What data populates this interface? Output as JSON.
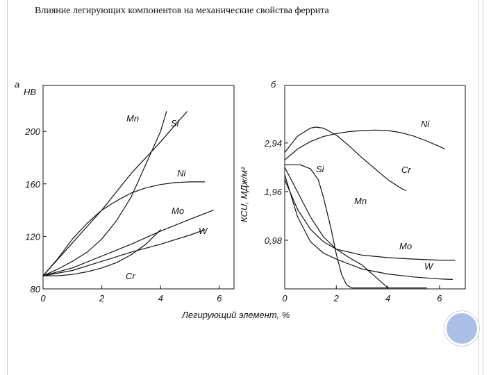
{
  "title": "Влияние легирующих компонентов на механические свойства феррита",
  "colors": {
    "line": "#111111",
    "border": "#c9cdd4",
    "decor": "#a9bfe6"
  },
  "shared_xlabel": "Легирующий элемент, %",
  "chart_data": [
    {
      "type": "line",
      "panel_label": "а",
      "ylabel": "НВ",
      "xlabel": "",
      "xlim": [
        0,
        6.5
      ],
      "ylim": [
        80,
        235
      ],
      "xticks": [
        0,
        2,
        4,
        6
      ],
      "xtick_labels": [
        "0",
        "2",
        "4",
        "6"
      ],
      "yticks": [
        80,
        120,
        160,
        200
      ],
      "ytick_labels": [
        "80",
        "120",
        "160",
        "200"
      ],
      "grid": false,
      "series": [
        {
          "name": "Mn",
          "x": [
            0,
            0.5,
            1,
            1.5,
            2,
            2.5,
            3,
            3.3,
            3.6,
            4,
            4.2
          ],
          "y": [
            90,
            95,
            101,
            108,
            118,
            132,
            150,
            165,
            180,
            200,
            215
          ]
        },
        {
          "name": "Si",
          "x": [
            0,
            1,
            2,
            3,
            4,
            4.5,
            4.9
          ],
          "y": [
            90,
            115,
            140,
            168,
            192,
            205,
            215
          ]
        },
        {
          "name": "Ni",
          "x": [
            0,
            0.5,
            1,
            1.5,
            2,
            2.5,
            3,
            3.5,
            4,
            4.5,
            5,
            5.5
          ],
          "y": [
            90,
            103,
            118,
            130,
            140,
            147,
            153,
            157,
            159.5,
            161,
            161.5,
            161.5
          ]
        },
        {
          "name": "Mo",
          "x": [
            0,
            1,
            2,
            3,
            4,
            5,
            5.8
          ],
          "y": [
            90,
            96,
            105,
            114,
            124,
            133,
            140
          ]
        },
        {
          "name": "W",
          "x": [
            0,
            1,
            2,
            3,
            4,
            5,
            5.5
          ],
          "y": [
            90,
            94,
            101,
            108,
            114,
            121,
            125
          ]
        },
        {
          "name": "Cr",
          "x": [
            0,
            0.5,
            1,
            1.5,
            2,
            2.5,
            3,
            3.5,
            4
          ],
          "y": [
            90,
            90,
            91,
            93,
            96,
            100,
            106,
            114,
            125
          ]
        }
      ]
    },
    {
      "type": "line",
      "panel_label": "б",
      "ylabel": "КСU, МДж/м²",
      "xlabel": "",
      "xlim": [
        0,
        7
      ],
      "ylim": [
        0,
        4.1
      ],
      "xticks": [
        0,
        2,
        4,
        6
      ],
      "xtick_labels": [
        "0",
        "2",
        "4",
        "6"
      ],
      "yticks": [
        0.98,
        1.96,
        2.94
      ],
      "ytick_labels": [
        "0,98",
        "1,96",
        "2,94"
      ],
      "grid": false,
      "series": [
        {
          "name": "Ni",
          "x": [
            0,
            0.5,
            1,
            1.5,
            2,
            2.5,
            3,
            3.5,
            4,
            4.5,
            5,
            5.5,
            6,
            6.2
          ],
          "y": [
            2.6,
            2.82,
            2.97,
            3.07,
            3.13,
            3.17,
            3.19,
            3.2,
            3.19,
            3.15,
            3.08,
            2.98,
            2.87,
            2.82
          ]
        },
        {
          "name": "Cr",
          "x": [
            0,
            0.5,
            1,
            1.2,
            1.5,
            2,
            2.5,
            3,
            3.5,
            4,
            4.5,
            4.7
          ],
          "y": [
            2.75,
            3.08,
            3.24,
            3.26,
            3.24,
            3.1,
            2.88,
            2.64,
            2.42,
            2.2,
            2.03,
            1.98
          ]
        },
        {
          "name": "Si",
          "x": [
            0,
            0.6,
            1,
            1.3,
            1.5,
            1.8,
            2,
            2.2,
            2.4,
            2.6,
            3,
            4,
            5,
            5.5
          ],
          "y": [
            2.5,
            2.5,
            2.42,
            2.2,
            1.85,
            1.2,
            0.7,
            0.3,
            0.08,
            0.02,
            0.02,
            0.02,
            0.02,
            0.02
          ]
        },
        {
          "name": "Mn",
          "x": [
            0,
            0.5,
            1,
            1.5,
            2,
            2.5,
            3,
            3.5,
            4
          ],
          "y": [
            2.45,
            1.95,
            1.45,
            1.05,
            0.8,
            0.63,
            0.48,
            0.25,
            0.02
          ]
        },
        {
          "name": "Mo",
          "x": [
            0,
            0.5,
            1,
            1.5,
            2,
            3,
            4,
            5,
            6,
            6.6
          ],
          "y": [
            2.2,
            1.6,
            1.2,
            0.95,
            0.8,
            0.68,
            0.63,
            0.6,
            0.58,
            0.58
          ]
        },
        {
          "name": "W",
          "x": [
            0,
            0.5,
            1,
            1.5,
            2,
            2.5,
            3,
            4,
            5,
            6,
            6.5
          ],
          "y": [
            2.3,
            1.45,
            0.95,
            0.72,
            0.6,
            0.5,
            0.4,
            0.3,
            0.24,
            0.2,
            0.19
          ]
        }
      ]
    }
  ]
}
